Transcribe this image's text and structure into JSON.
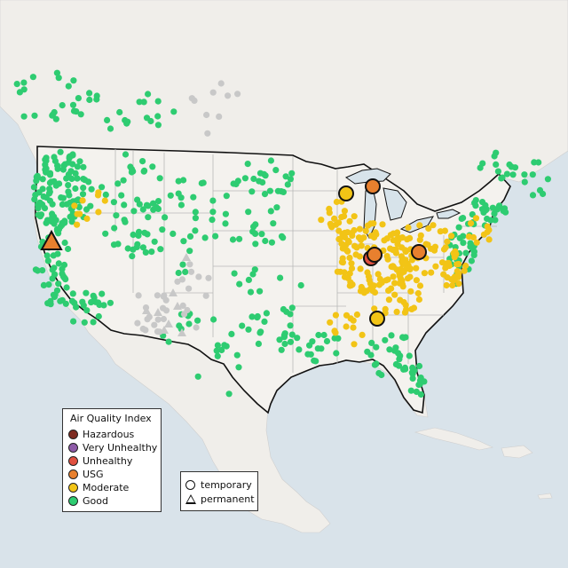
{
  "legend": {
    "title": "Air Quality Index",
    "categories": [
      {
        "label": "Hazardous",
        "color": "#7e2b21"
      },
      {
        "label": "Very Unhealthy",
        "color": "#8e5ba8"
      },
      {
        "label": "Unhealthy",
        "color": "#e05040"
      },
      {
        "label": "USG",
        "color": "#e8802e"
      },
      {
        "label": "Moderate",
        "color": "#f2c416"
      },
      {
        "label": "Good",
        "color": "#2ecc71"
      }
    ],
    "types": [
      {
        "label": "temporary",
        "shape": "circle"
      },
      {
        "label": "permanent",
        "shape": "triangle"
      }
    ]
  },
  "colors": {
    "land": "#f1efea",
    "us_land": "#f4f2ee",
    "water": "#d7e3ea",
    "border": "#111111",
    "state_line": "#b8b8b8",
    "no_data": "#c8c8c8"
  },
  "highlighted_monitors": [
    {
      "category": "USG",
      "type": "permanent",
      "location": "northern California"
    },
    {
      "category": "Moderate",
      "type": "temporary",
      "location": "Wisconsin"
    },
    {
      "category": "USG",
      "type": "temporary",
      "location": "Michigan"
    },
    {
      "category": "Unhealthy",
      "type": "temporary",
      "location": "Indiana"
    },
    {
      "category": "USG",
      "type": "temporary",
      "location": "Indiana"
    },
    {
      "category": "USG",
      "type": "temporary",
      "location": "Ohio"
    },
    {
      "category": "Moderate",
      "type": "temporary",
      "location": "Tennessee"
    }
  ]
}
